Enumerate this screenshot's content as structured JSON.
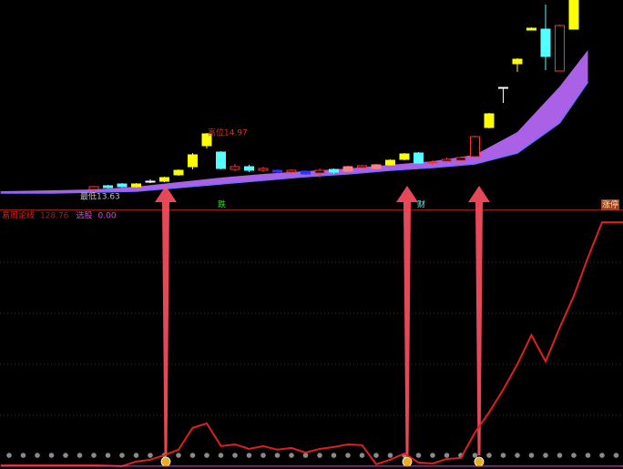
{
  "chart_data": [
    {
      "type": "candlestick",
      "xlim": [
        -6.6,
        37.5
      ],
      "ylim": [
        13.29,
        17.89
      ],
      "hollow_color": "#ff3030",
      "candles": {
        "open": [
          13.73,
          13.81,
          13.85,
          13.79,
          13.89,
          13.91,
          14.05,
          14.23,
          14.69,
          14.55,
          14.17,
          14.23,
          14.15,
          14.15,
          14.11,
          14.13,
          14.09,
          14.17,
          14.13,
          14.21,
          14.19,
          14.27,
          14.39,
          14.53,
          14.31,
          14.35,
          14.37,
          14.45,
          15.09,
          15.95,
          16.49,
          17.23,
          17.25,
          16.33,
          17.25
        ],
        "high": [
          13.81,
          13.83,
          13.87,
          13.87,
          13.95,
          14.01,
          14.17,
          14.53,
          14.97,
          14.57,
          14.29,
          14.27,
          14.23,
          14.17,
          14.17,
          14.15,
          14.19,
          14.19,
          14.25,
          14.27,
          14.29,
          14.39,
          14.53,
          14.55,
          14.37,
          14.43,
          14.45,
          14.91,
          15.41,
          15.97,
          16.61,
          17.29,
          17.79,
          17.35,
          17.89
        ],
        "low": [
          13.63,
          13.75,
          13.77,
          13.77,
          13.87,
          13.89,
          14.03,
          14.17,
          14.63,
          14.17,
          14.13,
          14.11,
          14.11,
          14.09,
          14.07,
          14.05,
          13.99,
          14.07,
          14.11,
          14.19,
          14.17,
          14.25,
          14.37,
          14.29,
          14.27,
          14.33,
          14.35,
          14.43,
          15.07,
          15.63,
          16.31,
          17.23,
          16.35,
          16.33,
          17.25
        ],
        "close": [
          13.79,
          13.77,
          13.79,
          13.85,
          13.91,
          13.99,
          14.15,
          14.49,
          14.95,
          14.19,
          14.23,
          14.15,
          14.19,
          14.11,
          14.15,
          14.07,
          14.15,
          14.11,
          14.23,
          14.25,
          14.27,
          14.37,
          14.51,
          14.31,
          14.33,
          14.39,
          14.43,
          14.89,
          15.39,
          15.97,
          16.59,
          17.27,
          16.65,
          17.33,
          17.89
        ],
        "colors": [
          "#ff3030",
          "#54ffff",
          "#54ffff",
          "#ffff00",
          "#ffffff",
          "#ffff00",
          "#ffff00",
          "#ffff00",
          "#ffff00",
          "#54ffff",
          "#ff3030",
          "#54ffff",
          "#ff3030",
          "#3030ff",
          "#ff3030",
          "#3030ff",
          "#ff3030",
          "#54ffff",
          "#ff8080",
          "#ff3030",
          "#ff8080",
          "#ffff00",
          "#ffff00",
          "#54ffff",
          "#ff3030",
          "#ff3030",
          "#ff3030",
          "#ff3030",
          "#ffff00",
          "#ffffff",
          "#ffff00",
          "#ffff00",
          "#54ffff",
          "#ff3030",
          "#ffff00"
        ]
      },
      "band": {
        "color": "#b366f2",
        "edge_color": "#7070ff",
        "x": [
          -6.6,
          -3,
          0,
          3,
          6,
          9,
          12,
          15,
          18,
          21,
          24,
          27,
          30,
          33,
          35
        ],
        "upper": [
          13.69,
          13.71,
          13.73,
          13.79,
          13.89,
          13.99,
          14.07,
          14.13,
          14.19,
          14.27,
          14.35,
          14.49,
          14.99,
          15.99,
          16.79
        ],
        "lower": [
          13.65,
          13.65,
          13.67,
          13.69,
          13.77,
          13.85,
          13.93,
          14.01,
          14.07,
          14.15,
          14.21,
          14.29,
          14.53,
          15.19,
          16.09
        ]
      },
      "annotations": [
        "高位14.97",
        "最低13.63"
      ],
      "signals": [
        "跌",
        "财",
        "涨停"
      ]
    },
    {
      "type": "line",
      "xlim": [
        -6.6,
        37.5
      ],
      "ylim": [
        -1.5,
        134.6
      ],
      "series": [
        {
          "name": "易周论线",
          "color": "#e02020",
          "x": [
            -6.6,
            0,
            2,
            3,
            4,
            5,
            6,
            7,
            8,
            9,
            10,
            11,
            12,
            13,
            14,
            15,
            16,
            17,
            18,
            19,
            20,
            21,
            22,
            23,
            24,
            25,
            26,
            27,
            28,
            29,
            30,
            31,
            32,
            33,
            34,
            35,
            36,
            37.5
          ],
          "values": [
            0.5,
            0.5,
            0,
            2.4,
            3.4,
            5.8,
            8.7,
            20.2,
            22.6,
            10.6,
            11.5,
            9.1,
            10.6,
            8.7,
            9.6,
            7.2,
            9.1,
            10.1,
            11.5,
            11.1,
            1.0,
            3.4,
            6.7,
            1.9,
            1.4,
            3.8,
            4.3,
            17.8,
            28.4,
            40.4,
            53.8,
            69.2,
            55.3,
            73.1,
            89.9,
            110.1,
            128.76,
            128.76
          ]
        },
        {
          "name": "选股",
          "color": "#e040e0",
          "x": [
            -6.6,
            37.5
          ],
          "values": [
            0,
            0
          ]
        }
      ],
      "legend": [
        {
          "value": 128.76
        },
        {
          "value": 0,
          "label": "0.00"
        }
      ]
    }
  ]
}
